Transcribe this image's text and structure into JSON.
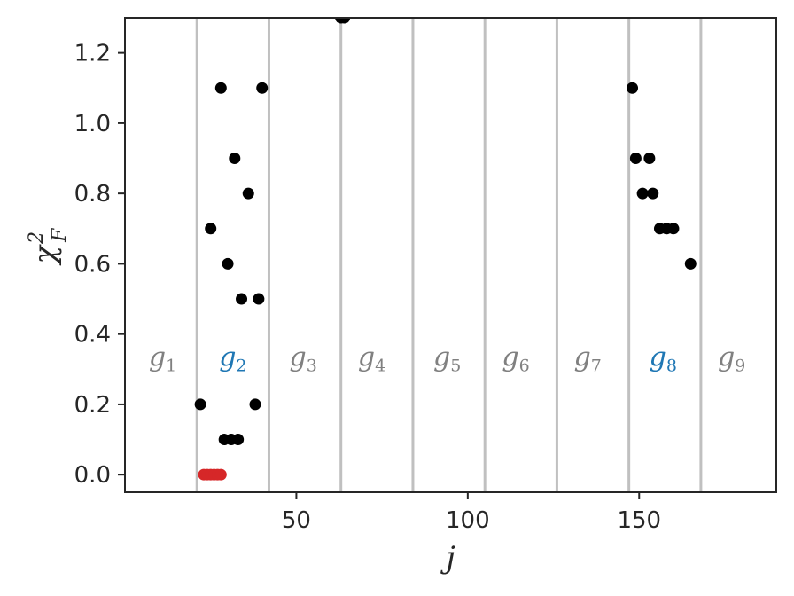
{
  "chart_data": {
    "type": "scatter",
    "xlabel": "j",
    "ylabel": "χ",
    "ylabel_sup": "2",
    "ylabel_sub": "F",
    "xlim": [
      0,
      190
    ],
    "ylim": [
      -0.05,
      1.3
    ],
    "x_ticks": [
      50,
      100,
      150
    ],
    "x_tick_labels": [
      "50",
      "100",
      "150"
    ],
    "y_ticks": [
      0.0,
      0.2,
      0.4,
      0.6,
      0.8,
      1.0,
      1.2
    ],
    "y_tick_labels": [
      "0.0",
      "0.2",
      "0.4",
      "0.6",
      "0.8",
      "1.0",
      "1.2"
    ],
    "grid": false,
    "group_boundaries": [
      21,
      42,
      63,
      84,
      105,
      126,
      147,
      168
    ],
    "groups": [
      {
        "base": "g",
        "sub": "1",
        "x": 11,
        "color": "#808080"
      },
      {
        "base": "g",
        "sub": "2",
        "x": 31.5,
        "color": "#1f77b4"
      },
      {
        "base": "g",
        "sub": "3",
        "x": 52,
        "color": "#808080"
      },
      {
        "base": "g",
        "sub": "4",
        "x": 72,
        "color": "#808080"
      },
      {
        "base": "g",
        "sub": "5",
        "x": 94,
        "color": "#808080"
      },
      {
        "base": "g",
        "sub": "6",
        "x": 114,
        "color": "#808080"
      },
      {
        "base": "g",
        "sub": "7",
        "x": 135,
        "color": "#808080"
      },
      {
        "base": "g",
        "sub": "8",
        "x": 157,
        "color": "#1f77b4"
      },
      {
        "base": "g",
        "sub": "9",
        "x": 177,
        "color": "#808080"
      }
    ],
    "group_label_y": 0.31,
    "series": [
      {
        "color": "#000000",
        "points": [
          [
            22,
            0.2
          ],
          [
            25,
            0.7
          ],
          [
            28,
            1.1
          ],
          [
            29,
            0.1
          ],
          [
            30,
            0.6
          ],
          [
            31,
            0.1
          ],
          [
            32,
            0.9
          ],
          [
            33,
            0.1
          ],
          [
            34,
            0.5
          ],
          [
            36,
            0.8
          ],
          [
            38,
            0.2
          ],
          [
            39,
            0.5
          ],
          [
            40,
            1.1
          ],
          [
            63,
            1.3
          ],
          [
            64,
            1.3
          ],
          [
            148,
            1.1
          ],
          [
            149,
            0.9
          ],
          [
            151,
            0.8
          ],
          [
            153,
            0.9
          ],
          [
            154,
            0.8
          ],
          [
            156,
            0.7
          ],
          [
            158,
            0.7
          ],
          [
            160,
            0.7
          ],
          [
            165,
            0.6
          ]
        ]
      },
      {
        "color": "#d62728",
        "points": [
          [
            23,
            0.0
          ],
          [
            24,
            0.0
          ],
          [
            25,
            0.0
          ],
          [
            26,
            0.0
          ],
          [
            27,
            0.0
          ],
          [
            28,
            0.0
          ]
        ]
      }
    ]
  }
}
